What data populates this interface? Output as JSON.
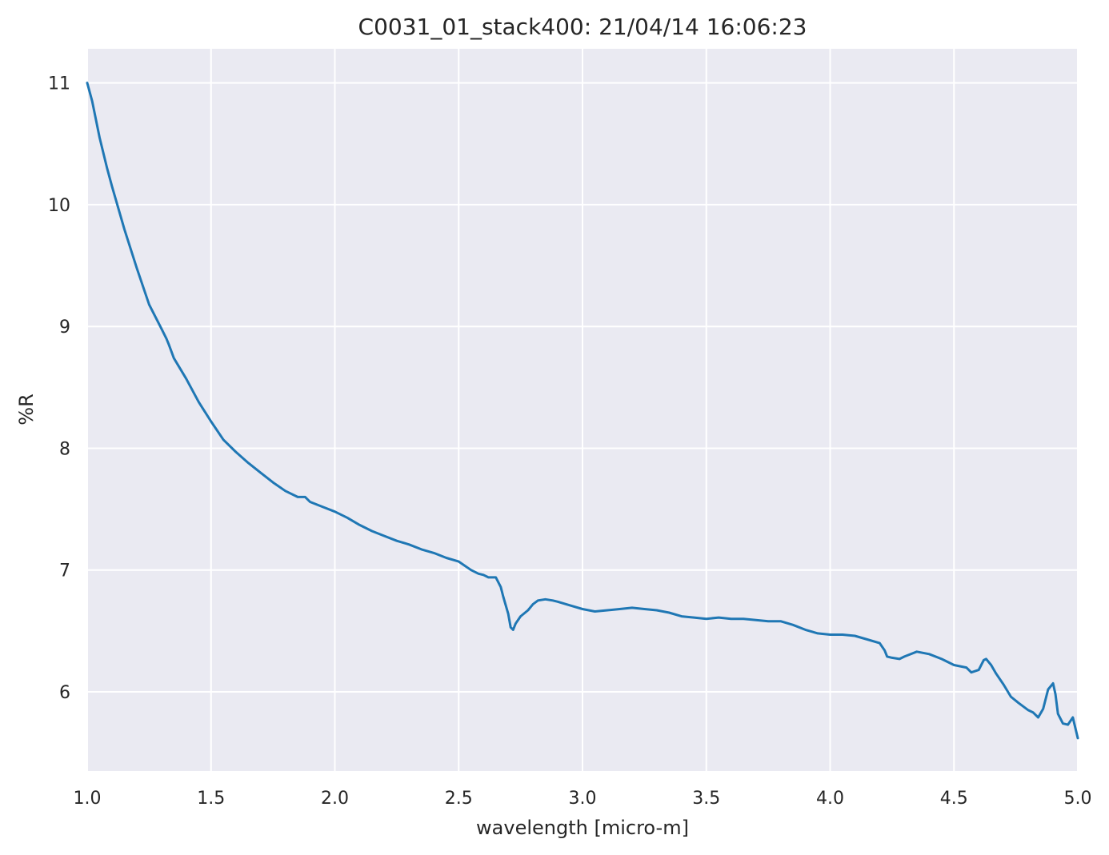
{
  "chart_data": {
    "type": "line",
    "title": "C0031_01_stack400:  21/04/14 16:06:23",
    "xlabel": "wavelength [micro-m]",
    "ylabel": "%R",
    "xlim": [
      1.0,
      5.0
    ],
    "ylim": [
      5.35,
      11.28
    ],
    "grid": true,
    "x_ticks": [
      "1.0",
      "1.5",
      "2.0",
      "2.5",
      "3.0",
      "3.5",
      "4.0",
      "4.5",
      "5.0"
    ],
    "y_ticks": [
      "6",
      "7",
      "8",
      "9",
      "10",
      "11"
    ],
    "series_color": "#1f77b4",
    "background_color": "#eaeaf2",
    "series": [
      {
        "x": [
          1.0,
          1.02,
          1.05,
          1.08,
          1.1,
          1.15,
          1.2,
          1.25,
          1.3,
          1.32,
          1.33,
          1.35,
          1.4,
          1.45,
          1.5,
          1.55,
          1.6,
          1.65,
          1.7,
          1.75,
          1.8,
          1.85,
          1.88,
          1.9,
          1.95,
          2.0,
          2.05,
          2.1,
          2.15,
          2.2,
          2.25,
          2.3,
          2.35,
          2.4,
          2.45,
          2.5,
          2.55,
          2.58,
          2.6,
          2.62,
          2.65,
          2.67,
          2.68,
          2.7,
          2.71,
          2.72,
          2.73,
          2.75,
          2.78,
          2.8,
          2.82,
          2.85,
          2.88,
          2.9,
          2.95,
          3.0,
          3.05,
          3.1,
          3.15,
          3.2,
          3.25,
          3.3,
          3.35,
          3.4,
          3.45,
          3.5,
          3.55,
          3.6,
          3.65,
          3.7,
          3.75,
          3.8,
          3.85,
          3.9,
          3.95,
          4.0,
          4.05,
          4.1,
          4.15,
          4.2,
          4.22,
          4.23,
          4.25,
          4.28,
          4.3,
          4.35,
          4.4,
          4.45,
          4.5,
          4.55,
          4.57,
          4.6,
          4.62,
          4.63,
          4.65,
          4.67,
          4.7,
          4.73,
          4.76,
          4.8,
          4.82,
          4.84,
          4.86,
          4.88,
          4.9,
          4.91,
          4.92,
          4.94,
          4.96,
          4.98,
          5.0
        ],
        "y": [
          11.0,
          10.85,
          10.55,
          10.3,
          10.15,
          9.8,
          9.48,
          9.18,
          8.98,
          8.9,
          8.85,
          8.74,
          8.57,
          8.38,
          8.22,
          8.07,
          7.97,
          7.88,
          7.8,
          7.72,
          7.65,
          7.6,
          7.6,
          7.56,
          7.52,
          7.48,
          7.43,
          7.37,
          7.32,
          7.28,
          7.24,
          7.21,
          7.17,
          7.14,
          7.1,
          7.07,
          7.0,
          6.97,
          6.96,
          6.94,
          6.94,
          6.86,
          6.78,
          6.64,
          6.53,
          6.51,
          6.56,
          6.62,
          6.67,
          6.72,
          6.75,
          6.76,
          6.75,
          6.74,
          6.71,
          6.68,
          6.66,
          6.67,
          6.68,
          6.69,
          6.68,
          6.67,
          6.65,
          6.62,
          6.61,
          6.6,
          6.61,
          6.6,
          6.6,
          6.59,
          6.58,
          6.58,
          6.55,
          6.51,
          6.48,
          6.47,
          6.47,
          6.46,
          6.43,
          6.4,
          6.34,
          6.29,
          6.28,
          6.27,
          6.29,
          6.33,
          6.31,
          6.27,
          6.22,
          6.2,
          6.16,
          6.18,
          6.26,
          6.27,
          6.22,
          6.15,
          6.06,
          5.96,
          5.91,
          5.85,
          5.83,
          5.79,
          5.86,
          6.02,
          6.07,
          5.98,
          5.82,
          5.74,
          5.73,
          5.79,
          5.62
        ]
      }
    ]
  }
}
